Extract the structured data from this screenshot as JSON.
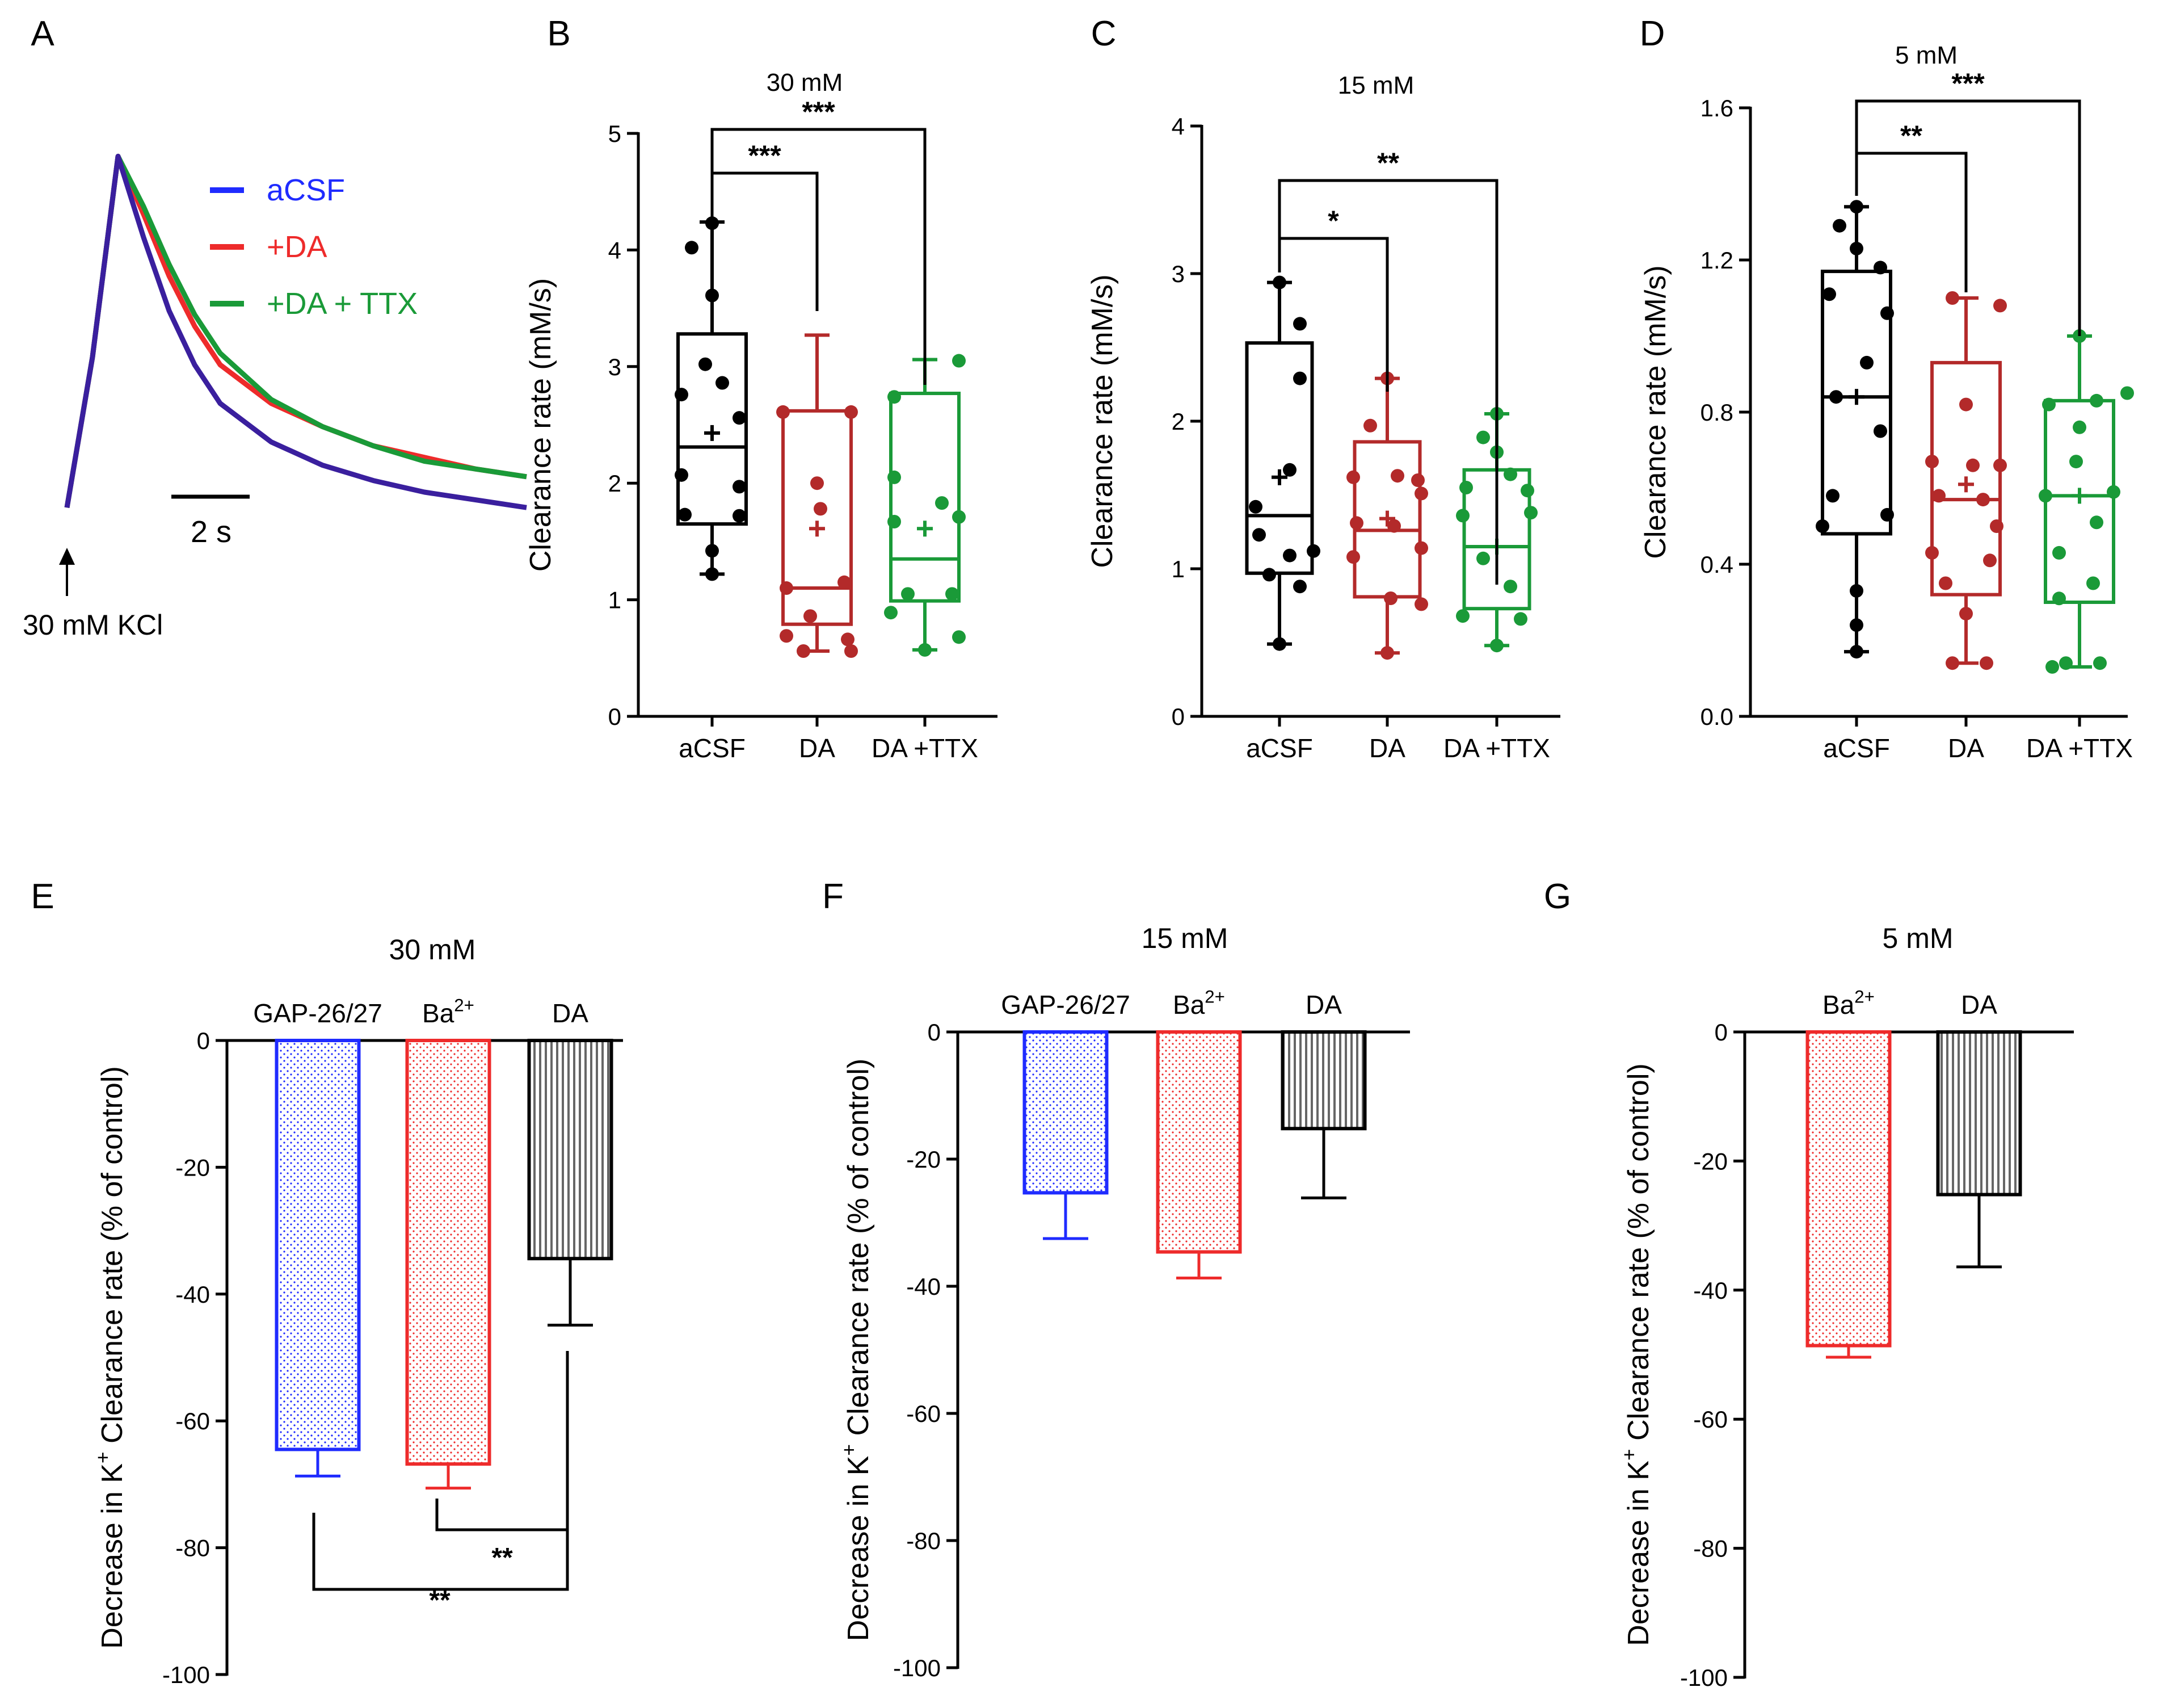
{
  "colors": {
    "black": "#000000",
    "blue": "#1f2bff",
    "red": "#ee2b2b",
    "green": "#1a9a38",
    "darkred": "#b32a2a",
    "gray": "#555555",
    "purple": "#3a1f9e"
  },
  "chart_data": [
    {
      "panel": "A",
      "type": "line",
      "legend": [
        "aCSF",
        "+DA",
        "+DA + TTX"
      ],
      "scale_bar": "2 s",
      "stimulus": "30 mM KCl",
      "series": [
        {
          "name": "aCSF",
          "x": [
            0,
            0.5,
            1.0,
            1.5,
            2.0,
            2.5,
            3.0,
            4.0,
            5.0,
            6.0,
            7.0,
            8.0,
            9.0
          ],
          "y": [
            0.06,
            0.45,
            0.97,
            0.76,
            0.57,
            0.43,
            0.33,
            0.23,
            0.17,
            0.13,
            0.1,
            0.08,
            0.06
          ]
        },
        {
          "name": "+DA",
          "x": [
            0,
            0.5,
            1.0,
            1.5,
            2.0,
            2.5,
            3.0,
            4.0,
            5.0,
            6.0,
            7.0,
            8.0,
            9.0
          ],
          "y": [
            0.06,
            0.45,
            0.97,
            0.82,
            0.66,
            0.53,
            0.43,
            0.33,
            0.27,
            0.22,
            0.19,
            0.16,
            0.14
          ]
        },
        {
          "name": "+DA + TTX",
          "x": [
            0,
            0.5,
            1.0,
            1.5,
            2.0,
            2.5,
            3.0,
            4.0,
            5.0,
            6.0,
            7.0,
            8.0,
            9.0
          ],
          "y": [
            0.06,
            0.45,
            0.97,
            0.84,
            0.69,
            0.56,
            0.46,
            0.34,
            0.27,
            0.22,
            0.18,
            0.16,
            0.14
          ]
        }
      ]
    },
    {
      "panel": "B",
      "type": "box",
      "title": "30 mM",
      "ylabel": "Clearance rate (mM/s)",
      "ylim": [
        0,
        5
      ],
      "yticks": [
        "0",
        "1",
        "2",
        "3",
        "4",
        "5"
      ],
      "categories": [
        "aCSF",
        "DA",
        "DA +TTX"
      ],
      "boxes": [
        {
          "min": 1.22,
          "q1": 1.65,
          "median": 2.31,
          "q3": 3.28,
          "max": 4.24,
          "mean": 2.43,
          "points": [
            [
              0.0,
              4.23
            ],
            [
              -0.06,
              4.02
            ],
            [
              0.0,
              3.61
            ],
            [
              -0.02,
              3.02
            ],
            [
              0.03,
              2.86
            ],
            [
              -0.09,
              2.76
            ],
            [
              0.08,
              2.56
            ],
            [
              -0.09,
              2.07
            ],
            [
              0.08,
              1.97
            ],
            [
              -0.08,
              1.73
            ],
            [
              0.08,
              1.72
            ],
            [
              0.0,
              1.42
            ],
            [
              0.0,
              1.22
            ]
          ]
        },
        {
          "min": 0.56,
          "q1": 0.79,
          "median": 1.1,
          "q3": 2.62,
          "max": 3.27,
          "mean": 1.61,
          "points": [
            [
              -0.1,
              2.61
            ],
            [
              0.1,
              2.61
            ],
            [
              0.0,
              2.0
            ],
            [
              0.01,
              1.78
            ],
            [
              0.08,
              1.15
            ],
            [
              -0.09,
              1.1
            ],
            [
              -0.02,
              0.86
            ],
            [
              -0.09,
              0.69
            ],
            [
              0.09,
              0.66
            ],
            [
              -0.04,
              0.56
            ],
            [
              0.1,
              0.56
            ]
          ]
        },
        {
          "min": 0.57,
          "q1": 0.99,
          "median": 1.35,
          "q3": 2.77,
          "max": 3.06,
          "mean": 1.61,
          "points": [
            [
              0.1,
              3.05
            ],
            [
              -0.09,
              2.74
            ],
            [
              -0.09,
              2.05
            ],
            [
              0.05,
              1.83
            ],
            [
              -0.09,
              1.67
            ],
            [
              0.1,
              1.71
            ],
            [
              -0.05,
              1.05
            ],
            [
              0.08,
              1.05
            ],
            [
              -0.1,
              0.89
            ],
            [
              0.1,
              0.68
            ],
            [
              0.0,
              0.57
            ]
          ]
        }
      ],
      "brackets": [
        {
          "from": 0,
          "to": 1,
          "label": "***"
        },
        {
          "from": 0,
          "to": 2,
          "label": "***"
        }
      ]
    },
    {
      "panel": "C",
      "type": "box",
      "title": "15 mM",
      "ylabel": "Clearance rate (mM/s)",
      "ylim": [
        0,
        4
      ],
      "yticks": [
        "0",
        "1",
        "2",
        "3",
        "4"
      ],
      "categories": [
        "aCSF",
        "DA",
        "DA +TTX"
      ],
      "boxes": [
        {
          "min": 0.49,
          "q1": 0.97,
          "median": 1.36,
          "q3": 2.53,
          "max": 2.94,
          "mean": 1.62,
          "points": [
            [
              0.0,
              2.94
            ],
            [
              0.06,
              2.66
            ],
            [
              0.06,
              2.29
            ],
            [
              0.03,
              1.67
            ],
            [
              -0.07,
              1.42
            ],
            [
              -0.06,
              1.23
            ],
            [
              0.03,
              1.09
            ],
            [
              0.1,
              1.12
            ],
            [
              -0.03,
              0.96
            ],
            [
              0.06,
              0.88
            ],
            [
              0.0,
              0.49
            ]
          ]
        },
        {
          "min": 0.43,
          "q1": 0.81,
          "median": 1.26,
          "q3": 1.86,
          "max": 2.29,
          "mean": 1.34,
          "points": [
            [
              0.0,
              2.29
            ],
            [
              -0.05,
              1.97
            ],
            [
              0.03,
              1.63
            ],
            [
              -0.1,
              1.62
            ],
            [
              0.09,
              1.6
            ],
            [
              0.1,
              1.51
            ],
            [
              -0.09,
              1.31
            ],
            [
              0.02,
              1.29
            ],
            [
              0.1,
              1.14
            ],
            [
              -0.1,
              1.08
            ],
            [
              0.01,
              0.8
            ],
            [
              0.1,
              0.76
            ],
            [
              0.0,
              0.43
            ]
          ]
        },
        {
          "min": 0.48,
          "q1": 0.73,
          "median": 1.15,
          "q3": 1.67,
          "max": 2.05,
          "mean": 1.15,
          "points": [
            [
              0.0,
              2.05
            ],
            [
              -0.04,
              1.89
            ],
            [
              0.0,
              1.79
            ],
            [
              0.04,
              1.64
            ],
            [
              -0.09,
              1.55
            ],
            [
              0.09,
              1.53
            ],
            [
              -0.1,
              1.36
            ],
            [
              0.1,
              1.38
            ],
            [
              -0.04,
              1.07
            ],
            [
              0.04,
              0.88
            ],
            [
              -0.1,
              0.68
            ],
            [
              0.07,
              0.66
            ],
            [
              0.0,
              0.48
            ]
          ]
        }
      ],
      "brackets": [
        {
          "from": 0,
          "to": 1,
          "label": "*"
        },
        {
          "from": 0,
          "to": 2,
          "label": "**"
        }
      ]
    },
    {
      "panel": "D",
      "type": "box",
      "title": "5 mM",
      "ylabel": "Clearance rate (mM/s)",
      "ylim": [
        0,
        1.6
      ],
      "yticks": [
        "0.0",
        "0.4",
        "0.8",
        "1.2",
        "1.6"
      ],
      "categories": [
        "aCSF",
        "DA",
        "DA +TTX"
      ],
      "boxes": [
        {
          "min": 0.17,
          "q1": 0.48,
          "median": 0.84,
          "q3": 1.17,
          "max": 1.34,
          "mean": 0.84,
          "points": [
            [
              0.0,
              1.34
            ],
            [
              -0.05,
              1.29
            ],
            [
              0.0,
              1.23
            ],
            [
              0.07,
              1.18
            ],
            [
              -0.08,
              1.11
            ],
            [
              0.09,
              1.06
            ],
            [
              0.03,
              0.93
            ],
            [
              -0.06,
              0.84
            ],
            [
              0.07,
              0.75
            ],
            [
              -0.07,
              0.58
            ],
            [
              0.09,
              0.53
            ],
            [
              -0.1,
              0.5
            ],
            [
              0.0,
              0.33
            ],
            [
              0.0,
              0.24
            ],
            [
              0.0,
              0.17
            ]
          ]
        },
        {
          "min": 0.14,
          "q1": 0.32,
          "median": 0.57,
          "q3": 0.93,
          "max": 1.1,
          "mean": 0.61,
          "points": [
            [
              -0.04,
              1.1
            ],
            [
              0.1,
              1.08
            ],
            [
              0.0,
              0.82
            ],
            [
              -0.1,
              0.67
            ],
            [
              0.02,
              0.66
            ],
            [
              0.1,
              0.66
            ],
            [
              -0.08,
              0.58
            ],
            [
              0.05,
              0.57
            ],
            [
              0.09,
              0.5
            ],
            [
              -0.1,
              0.43
            ],
            [
              0.07,
              0.41
            ],
            [
              -0.06,
              0.35
            ],
            [
              0.0,
              0.27
            ],
            [
              -0.04,
              0.14
            ],
            [
              0.06,
              0.14
            ]
          ]
        },
        {
          "min": 0.13,
          "q1": 0.3,
          "median": 0.58,
          "q3": 0.83,
          "max": 1.0,
          "mean": 0.58,
          "points": [
            [
              0.0,
              1.0
            ],
            [
              0.14,
              0.85
            ],
            [
              -0.09,
              0.82
            ],
            [
              0.05,
              0.83
            ],
            [
              0.0,
              0.76
            ],
            [
              -0.01,
              0.67
            ],
            [
              -0.1,
              0.58
            ],
            [
              0.1,
              0.59
            ],
            [
              0.05,
              0.51
            ],
            [
              -0.06,
              0.43
            ],
            [
              0.04,
              0.35
            ],
            [
              -0.06,
              0.31
            ],
            [
              -0.04,
              0.14
            ],
            [
              0.06,
              0.14
            ],
            [
              -0.08,
              0.13
            ]
          ]
        }
      ],
      "brackets": [
        {
          "from": 0,
          "to": 1,
          "label": "**"
        },
        {
          "from": 0,
          "to": 2,
          "label": "***"
        }
      ]
    },
    {
      "panel": "E",
      "type": "bar",
      "title": "30 mM",
      "ylabel": "Decrease in K+ Clearance rate (% of control)",
      "ylim": [
        -100,
        0
      ],
      "yticks": [
        "0",
        "-20",
        "-40",
        "-60",
        "-80",
        "-100"
      ],
      "categories": [
        "GAP-26/27",
        "Ba2+",
        "DA"
      ],
      "values": [
        -64.5,
        -66.8,
        -34.4
      ],
      "errors": [
        4.2,
        3.8,
        10.5
      ],
      "brackets": [
        {
          "from": 1,
          "to": 2,
          "label": "**"
        },
        {
          "from": 0,
          "to": 2,
          "label": "**"
        }
      ]
    },
    {
      "panel": "F",
      "type": "bar",
      "title": "15 mM",
      "ylabel": "Decrease in K+ Clearance rate (% of control)",
      "ylim": [
        -100,
        0
      ],
      "yticks": [
        "0",
        "-20",
        "-40",
        "-60",
        "-80",
        "-100"
      ],
      "categories": [
        "GAP-26/27",
        "Ba2+",
        "DA"
      ],
      "values": [
        -25.3,
        -34.6,
        -15.2
      ],
      "errors": [
        7.2,
        4.1,
        10.9
      ]
    },
    {
      "panel": "G",
      "type": "bar",
      "title": "5 mM",
      "ylabel": "Decrease in K+ Clearance rate (% of control)",
      "ylim": [
        -100,
        0
      ],
      "yticks": [
        "0",
        "-20",
        "-40",
        "-60",
        "-80",
        "-100"
      ],
      "categories": [
        "Ba2+",
        "DA"
      ],
      "values": [
        -48.6,
        -25.2
      ],
      "errors": [
        1.8,
        11.2
      ]
    }
  ]
}
